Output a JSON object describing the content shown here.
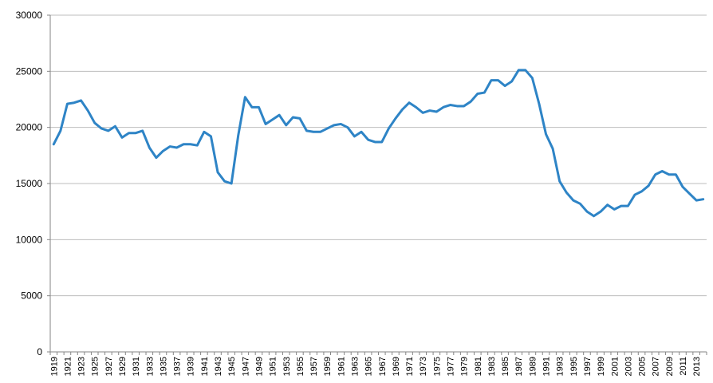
{
  "chart_data": {
    "type": "line",
    "title": "",
    "xlabel": "",
    "ylabel": "",
    "ylim": [
      0,
      30000
    ],
    "yticks": [
      0,
      5000,
      10000,
      15000,
      20000,
      25000,
      30000
    ],
    "grid": true,
    "legend": "none",
    "line_color": "#2e84c6",
    "x": [
      1919,
      1920,
      1921,
      1922,
      1923,
      1924,
      1925,
      1926,
      1927,
      1928,
      1929,
      1930,
      1931,
      1932,
      1933,
      1934,
      1935,
      1936,
      1937,
      1938,
      1939,
      1940,
      1941,
      1942,
      1943,
      1944,
      1945,
      1946,
      1947,
      1948,
      1949,
      1950,
      1951,
      1952,
      1953,
      1954,
      1955,
      1956,
      1957,
      1958,
      1959,
      1960,
      1961,
      1962,
      1963,
      1964,
      1965,
      1966,
      1967,
      1968,
      1969,
      1970,
      1971,
      1972,
      1973,
      1974,
      1975,
      1976,
      1977,
      1978,
      1979,
      1980,
      1981,
      1982,
      1983,
      1984,
      1985,
      1986,
      1987,
      1988,
      1989,
      1990,
      1991,
      1992,
      1993,
      1994,
      1995,
      1996,
      1997,
      1998,
      1999,
      2000,
      2001,
      2002,
      2003,
      2004,
      2005,
      2006,
      2007,
      2008,
      2009,
      2010,
      2011,
      2012,
      2013,
      2014
    ],
    "series": [
      {
        "values": [
          18500,
          19700,
          22100,
          22200,
          22400,
          21500,
          20400,
          19900,
          19700,
          20100,
          19100,
          19500,
          19500,
          19700,
          18200,
          17300,
          17900,
          18300,
          18200,
          18500,
          18500,
          18400,
          19600,
          19200,
          16000,
          15200,
          15000,
          19300,
          22700,
          21800,
          21800,
          20300,
          20700,
          21100,
          20200,
          20900,
          20800,
          19700,
          19600,
          19600,
          19900,
          20200,
          20300,
          20000,
          19200,
          19600,
          18900,
          18700,
          18700,
          19900,
          20800,
          21600,
          22200,
          21800,
          21300,
          21500,
          21400,
          21800,
          22000,
          21900,
          21900,
          22300,
          23000,
          23100,
          24200,
          24200,
          23700,
          24100,
          25100,
          25100,
          24400,
          22100,
          19400,
          18100,
          15200,
          14200,
          13500,
          13200,
          12500,
          12100,
          12500,
          13100,
          12700,
          13000,
          13000,
          14000,
          14300,
          14800,
          15800,
          16100,
          15800,
          15800,
          14700,
          14100,
          13500,
          13600
        ]
      }
    ],
    "xtick_labels": [
      "1919",
      "1921",
      "1923",
      "1925",
      "1927",
      "1929",
      "1931",
      "1933",
      "1935",
      "1937",
      "1939",
      "1941",
      "1943",
      "1945",
      "1947",
      "1949",
      "1951",
      "1953",
      "1955",
      "1957",
      "1959",
      "1961",
      "1963",
      "1965",
      "1967",
      "1969",
      "1971",
      "1973",
      "1975",
      "1977",
      "1979",
      "1981",
      "1983",
      "1985",
      "1987",
      "1989",
      "1991",
      "1993",
      "1995",
      "1997",
      "1999",
      "2001",
      "2003",
      "2005",
      "2007",
      "2009",
      "2011",
      "2013"
    ]
  }
}
